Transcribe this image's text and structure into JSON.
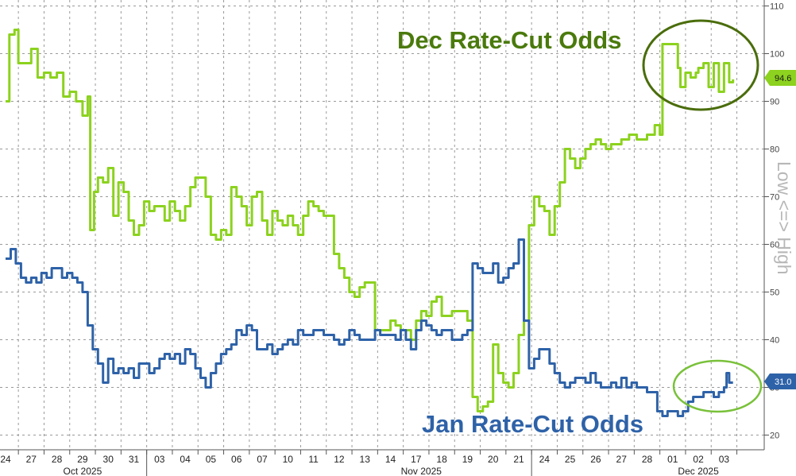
{
  "chart_data": {
    "type": "line",
    "ylabel": "Low <=> High",
    "ylim": [
      18,
      112
    ],
    "yticks": [
      20,
      30,
      40,
      50,
      60,
      70,
      80,
      90,
      100,
      110
    ],
    "date_ticks": [
      "24",
      "27",
      "28",
      "29",
      "30",
      "31",
      "03",
      "04",
      "05",
      "06",
      "07",
      "10",
      "11",
      "12",
      "13",
      "14",
      "17",
      "18",
      "19",
      "20",
      "21",
      "24",
      "25",
      "26",
      "27",
      "28",
      "01",
      "02",
      "03"
    ],
    "month_labels": [
      {
        "label": "Oct 2025",
        "at": 3
      },
      {
        "label": "Nov 2025",
        "at": 16.2
      },
      {
        "label": "Dec 2025",
        "at": 27
      }
    ],
    "annotations": [
      {
        "text": "Dec Rate-Cut Odds",
        "series": "dec"
      },
      {
        "text": "Jan Rate-Cut Odds",
        "series": "jan"
      }
    ],
    "series": [
      {
        "name": "Dec Rate-Cut Odds",
        "key": "dec",
        "color": "#8cd21e",
        "last": "94.6",
        "points": [
          [
            0,
            90
          ],
          [
            0.15,
            104
          ],
          [
            0.35,
            105
          ],
          [
            0.5,
            98
          ],
          [
            0.75,
            98
          ],
          [
            1,
            101
          ],
          [
            1.25,
            95
          ],
          [
            1.5,
            96
          ],
          [
            1.75,
            95
          ],
          [
            2,
            96
          ],
          [
            2.25,
            91
          ],
          [
            2.5,
            92
          ],
          [
            2.75,
            90
          ],
          [
            3,
            87
          ],
          [
            3.2,
            91
          ],
          [
            3.3,
            63
          ],
          [
            3.45,
            71
          ],
          [
            3.6,
            74
          ],
          [
            3.8,
            73
          ],
          [
            4,
            76
          ],
          [
            4.2,
            66
          ],
          [
            4.4,
            73
          ],
          [
            4.6,
            71
          ],
          [
            4.8,
            65
          ],
          [
            5,
            62
          ],
          [
            5.2,
            64
          ],
          [
            5.4,
            69
          ],
          [
            5.6,
            67
          ],
          [
            5.8,
            68
          ],
          [
            6,
            68
          ],
          [
            6.2,
            65
          ],
          [
            6.4,
            69
          ],
          [
            6.6,
            67
          ],
          [
            6.8,
            65
          ],
          [
            7,
            68
          ],
          [
            7.2,
            72
          ],
          [
            7.4,
            74
          ],
          [
            7.6,
            74
          ],
          [
            7.8,
            70
          ],
          [
            8,
            62
          ],
          [
            8.2,
            61
          ],
          [
            8.4,
            63
          ],
          [
            8.6,
            62
          ],
          [
            8.8,
            72
          ],
          [
            9,
            70
          ],
          [
            9.2,
            68
          ],
          [
            9.4,
            64
          ],
          [
            9.6,
            70
          ],
          [
            9.8,
            71
          ],
          [
            10,
            65
          ],
          [
            10.2,
            62
          ],
          [
            10.4,
            67
          ],
          [
            10.6,
            65
          ],
          [
            10.8,
            64
          ],
          [
            11,
            66
          ],
          [
            11.2,
            64
          ],
          [
            11.4,
            62
          ],
          [
            11.6,
            66
          ],
          [
            11.8,
            69
          ],
          [
            12,
            68
          ],
          [
            12.2,
            67
          ],
          [
            12.4,
            66
          ],
          [
            12.6,
            66
          ],
          [
            12.8,
            58
          ],
          [
            13,
            55
          ],
          [
            13.2,
            53
          ],
          [
            13.4,
            50
          ],
          [
            13.6,
            49
          ],
          [
            13.8,
            51
          ],
          [
            14,
            52
          ],
          [
            14.2,
            52
          ],
          [
            14.4,
            42
          ],
          [
            14.6,
            42
          ],
          [
            14.8,
            42
          ],
          [
            15,
            44
          ],
          [
            15.2,
            43
          ],
          [
            15.4,
            42
          ],
          [
            15.6,
            42
          ],
          [
            15.8,
            40
          ],
          [
            16,
            44
          ],
          [
            16.2,
            46
          ],
          [
            16.4,
            45
          ],
          [
            16.6,
            48
          ],
          [
            16.8,
            49
          ],
          [
            17,
            45
          ],
          [
            17.2,
            45
          ],
          [
            17.4,
            46
          ],
          [
            17.6,
            46
          ],
          [
            17.8,
            46
          ],
          [
            18,
            44
          ],
          [
            18.2,
            28
          ],
          [
            18.4,
            25
          ],
          [
            18.6,
            26
          ],
          [
            18.8,
            27
          ],
          [
            19,
            39
          ],
          [
            19.2,
            33
          ],
          [
            19.4,
            31
          ],
          [
            19.6,
            30
          ],
          [
            19.8,
            33
          ],
          [
            20,
            41
          ],
          [
            20.2,
            44
          ],
          [
            20.4,
            64
          ],
          [
            20.6,
            70
          ],
          [
            20.8,
            68
          ],
          [
            21,
            67
          ],
          [
            21.2,
            62
          ],
          [
            21.4,
            68
          ],
          [
            21.6,
            73
          ],
          [
            21.8,
            80
          ],
          [
            22,
            78
          ],
          [
            22.2,
            76
          ],
          [
            22.4,
            78
          ],
          [
            22.6,
            80
          ],
          [
            22.8,
            81
          ],
          [
            23,
            82
          ],
          [
            23.2,
            81
          ],
          [
            23.4,
            80
          ],
          [
            23.6,
            81
          ],
          [
            23.8,
            81
          ],
          [
            24,
            82
          ],
          [
            24.3,
            83
          ],
          [
            24.6,
            82
          ],
          [
            25,
            83
          ],
          [
            25.3,
            85
          ],
          [
            25.5,
            83
          ],
          [
            25.6,
            102
          ],
          [
            25.8,
            102
          ],
          [
            26,
            102
          ],
          [
            26.2,
            97
          ],
          [
            26.3,
            93
          ],
          [
            26.5,
            96
          ],
          [
            26.7,
            95
          ],
          [
            26.9,
            96
          ],
          [
            27,
            97
          ],
          [
            27.2,
            98
          ],
          [
            27.4,
            93
          ],
          [
            27.6,
            98
          ],
          [
            27.8,
            92
          ],
          [
            28,
            98
          ],
          [
            28.2,
            94
          ],
          [
            28.35,
            94.6
          ]
        ]
      },
      {
        "name": "Jan Rate-Cut Odds",
        "key": "jan",
        "color": "#2e62a8",
        "last": "31.0",
        "points": [
          [
            0,
            57
          ],
          [
            0.2,
            59
          ],
          [
            0.4,
            56
          ],
          [
            0.6,
            53
          ],
          [
            0.8,
            52
          ],
          [
            1,
            53
          ],
          [
            1.2,
            52
          ],
          [
            1.4,
            54
          ],
          [
            1.6,
            53
          ],
          [
            1.8,
            55
          ],
          [
            2,
            55
          ],
          [
            2.2,
            53
          ],
          [
            2.4,
            54
          ],
          [
            2.6,
            53
          ],
          [
            2.8,
            52
          ],
          [
            3,
            50
          ],
          [
            3.2,
            43
          ],
          [
            3.4,
            38
          ],
          [
            3.6,
            35
          ],
          [
            3.8,
            31
          ],
          [
            4,
            36
          ],
          [
            4.2,
            33
          ],
          [
            4.4,
            34
          ],
          [
            4.6,
            33
          ],
          [
            4.8,
            34
          ],
          [
            5,
            32
          ],
          [
            5.2,
            35
          ],
          [
            5.4,
            35
          ],
          [
            5.6,
            33
          ],
          [
            5.8,
            34
          ],
          [
            6,
            36
          ],
          [
            6.2,
            37
          ],
          [
            6.4,
            36
          ],
          [
            6.6,
            37
          ],
          [
            6.8,
            35
          ],
          [
            7,
            38
          ],
          [
            7.2,
            37
          ],
          [
            7.4,
            34
          ],
          [
            7.6,
            32
          ],
          [
            7.8,
            30
          ],
          [
            8,
            33
          ],
          [
            8.2,
            35
          ],
          [
            8.4,
            37
          ],
          [
            8.6,
            38
          ],
          [
            8.8,
            39
          ],
          [
            9,
            42
          ],
          [
            9.2,
            41
          ],
          [
            9.4,
            43
          ],
          [
            9.6,
            42
          ],
          [
            9.8,
            38
          ],
          [
            10,
            38
          ],
          [
            10.2,
            39
          ],
          [
            10.4,
            37
          ],
          [
            10.6,
            38
          ],
          [
            10.8,
            39
          ],
          [
            11,
            40
          ],
          [
            11.2,
            39
          ],
          [
            11.4,
            42
          ],
          [
            11.6,
            41
          ],
          [
            11.8,
            41
          ],
          [
            12,
            42
          ],
          [
            12.2,
            42
          ],
          [
            12.4,
            41
          ],
          [
            12.6,
            41
          ],
          [
            12.8,
            40
          ],
          [
            13,
            39
          ],
          [
            13.2,
            40
          ],
          [
            13.4,
            42
          ],
          [
            13.6,
            41
          ],
          [
            13.8,
            40
          ],
          [
            14,
            40
          ],
          [
            14.2,
            40
          ],
          [
            14.4,
            42
          ],
          [
            14.6,
            41
          ],
          [
            14.8,
            41
          ],
          [
            15,
            41
          ],
          [
            15.2,
            40
          ],
          [
            15.4,
            42
          ],
          [
            15.6,
            40
          ],
          [
            15.8,
            38
          ],
          [
            16,
            42
          ],
          [
            16.2,
            44
          ],
          [
            16.4,
            43
          ],
          [
            16.6,
            42
          ],
          [
            16.8,
            41
          ],
          [
            17,
            42
          ],
          [
            17.2,
            42
          ],
          [
            17.4,
            40
          ],
          [
            17.6,
            40
          ],
          [
            17.8,
            41
          ],
          [
            18,
            42
          ],
          [
            18.2,
            56
          ],
          [
            18.4,
            55
          ],
          [
            18.6,
            54
          ],
          [
            18.8,
            54
          ],
          [
            19,
            56
          ],
          [
            19.2,
            52
          ],
          [
            19.4,
            53
          ],
          [
            19.6,
            55
          ],
          [
            19.8,
            56
          ],
          [
            20,
            61
          ],
          [
            20.2,
            44
          ],
          [
            20.4,
            34
          ],
          [
            20.6,
            36
          ],
          [
            20.8,
            38
          ],
          [
            21,
            38
          ],
          [
            21.2,
            35
          ],
          [
            21.4,
            33
          ],
          [
            21.6,
            31
          ],
          [
            21.8,
            30
          ],
          [
            22,
            31
          ],
          [
            22.2,
            32
          ],
          [
            22.4,
            32
          ],
          [
            22.6,
            31
          ],
          [
            22.8,
            33
          ],
          [
            23,
            31
          ],
          [
            23.2,
            30
          ],
          [
            23.4,
            30
          ],
          [
            23.6,
            31
          ],
          [
            23.8,
            30
          ],
          [
            24,
            32
          ],
          [
            24.2,
            30
          ],
          [
            24.4,
            31
          ],
          [
            24.6,
            30
          ],
          [
            24.8,
            30
          ],
          [
            25,
            29
          ],
          [
            25.2,
            29
          ],
          [
            25.4,
            25
          ],
          [
            25.6,
            24
          ],
          [
            25.8,
            25
          ],
          [
            26,
            25
          ],
          [
            26.2,
            24
          ],
          [
            26.4,
            25
          ],
          [
            26.6,
            27
          ],
          [
            26.8,
            28
          ],
          [
            27,
            28
          ],
          [
            27.2,
            29
          ],
          [
            27.4,
            29
          ],
          [
            27.6,
            28
          ],
          [
            27.8,
            29
          ],
          [
            28,
            30
          ],
          [
            28.1,
            33
          ],
          [
            28.2,
            31
          ],
          [
            28.35,
            31
          ]
        ]
      }
    ]
  }
}
